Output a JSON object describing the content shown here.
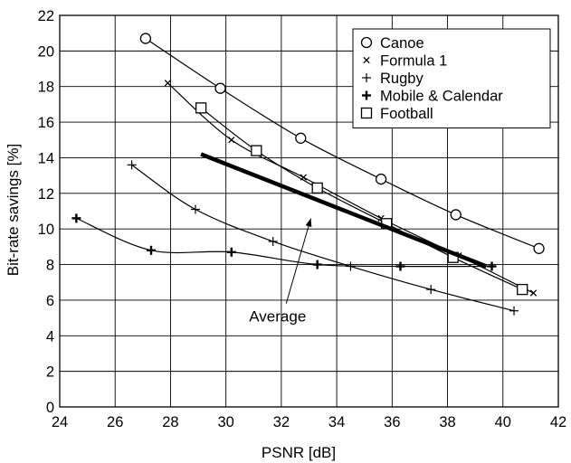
{
  "chart_data": {
    "type": "line",
    "xlabel": "PSNR [dB]",
    "ylabel": "Bit-rate savings [%]",
    "xlim": [
      24,
      42
    ],
    "ylim": [
      0,
      22
    ],
    "x_ticks": [
      24,
      26,
      28,
      30,
      32,
      34,
      36,
      38,
      40,
      42
    ],
    "y_ticks": [
      0,
      2,
      4,
      6,
      8,
      10,
      12,
      14,
      16,
      18,
      20,
      22
    ],
    "grid": true,
    "legend_position": "top-right",
    "series": [
      {
        "name": "Canoe",
        "marker": "circle",
        "x": [
          27.1,
          29.8,
          32.7,
          35.6,
          38.3,
          41.3
        ],
        "y": [
          20.7,
          17.9,
          15.1,
          12.8,
          10.8,
          8.9
        ]
      },
      {
        "name": "Formula 1",
        "marker": "x",
        "x": [
          27.9,
          30.2,
          32.8,
          35.6,
          38.4,
          41.1
        ],
        "y": [
          18.2,
          15.0,
          12.9,
          10.6,
          8.5,
          6.4
        ]
      },
      {
        "name": "Rugby",
        "marker": "plus",
        "x": [
          26.6,
          28.9,
          31.7,
          34.5,
          37.4,
          40.4
        ],
        "y": [
          13.6,
          11.1,
          9.3,
          7.9,
          6.6,
          5.4
        ]
      },
      {
        "name": "Mobile & Calendar",
        "marker": "bold-plus",
        "x": [
          24.6,
          27.3,
          30.2,
          33.3,
          36.3,
          39.6
        ],
        "y": [
          10.6,
          8.8,
          8.7,
          8.0,
          7.9,
          7.9
        ]
      },
      {
        "name": "Football",
        "marker": "square",
        "x": [
          29.1,
          31.1,
          33.3,
          35.8,
          38.2,
          40.7
        ],
        "y": [
          16.8,
          14.4,
          12.3,
          10.3,
          8.4,
          6.6
        ]
      }
    ],
    "average": {
      "x": [
        29.1,
        39.4
      ],
      "y": [
        14.2,
        7.9
      ]
    },
    "annotation": {
      "text": "Average",
      "point": [
        33.0,
        11.0
      ],
      "label_at": [
        31.0,
        5.1
      ]
    }
  }
}
